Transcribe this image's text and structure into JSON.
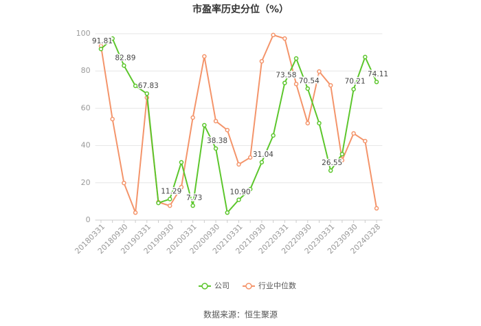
{
  "chart_data": {
    "type": "line",
    "title": "市盈率历史分位（%）",
    "source": "数据来源：恒生聚源",
    "categories": [
      "20180331",
      null,
      "20180930",
      null,
      "20190331",
      null,
      "20190930",
      null,
      "20200331",
      null,
      "20200930",
      null,
      "20210331",
      null,
      "20210930",
      null,
      "20220331",
      null,
      "20220930",
      null,
      "20230331",
      null,
      "20230930",
      null,
      "20240328"
    ],
    "series": [
      {
        "name": "公司",
        "color": "#5cc62c",
        "values": [
          91.81,
          97.4,
          82.89,
          72,
          67.83,
          9.2,
          11.29,
          31,
          7.73,
          50.9,
          38.38,
          4,
          10.9,
          16.6,
          31.04,
          45.4,
          73.58,
          86.7,
          70.54,
          52,
          26.55,
          35.4,
          70.21,
          87.5,
          74.11
        ],
        "value_labels": [
          "91.81",
          null,
          "82.89",
          null,
          "67.83",
          null,
          "11.29",
          null,
          "7.73",
          null,
          "38.38",
          null,
          "10.90",
          null,
          "31.04",
          null,
          "73.58",
          null,
          "70.54",
          null,
          "26.55",
          null,
          "70.21",
          null,
          "74.11"
        ]
      },
      {
        "name": "行业中位数",
        "color": "#f4946a",
        "values": [
          93.4,
          54.2,
          19.9,
          4,
          65.7,
          9.6,
          7.7,
          17.7,
          55,
          87.8,
          53.1,
          48.3,
          29.9,
          33.6,
          85.2,
          99.3,
          97.4,
          73,
          52,
          79.7,
          72.3,
          32.1,
          46.5,
          42.4,
          6.3
        ]
      }
    ],
    "ylim": [
      0,
      100
    ],
    "yticks": [
      0,
      20,
      40,
      60,
      80,
      100
    ],
    "grid": true,
    "legend": "bottom"
  }
}
